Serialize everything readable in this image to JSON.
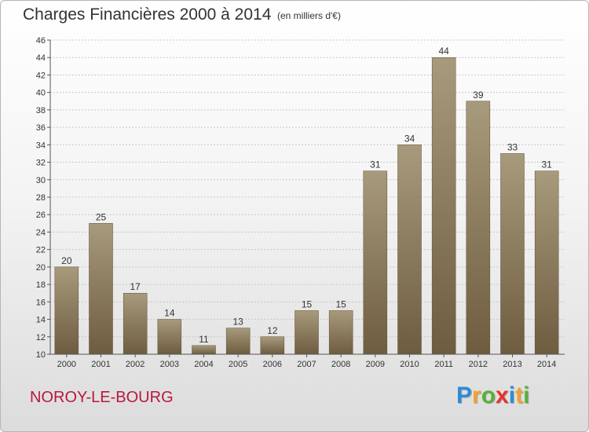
{
  "header": {
    "title": "Charges Financières 2000 à 2014",
    "subtitle": "(en milliers d'€)"
  },
  "footer": {
    "commune": "NOROY-LE-BOURG",
    "logo_letters": [
      {
        "ch": "P",
        "color": "#2e8bd8"
      },
      {
        "ch": "r",
        "color": "#f2a12c"
      },
      {
        "ch": "o",
        "color": "#58b03c"
      },
      {
        "ch": "x",
        "color": "#e8312a"
      },
      {
        "ch": "i",
        "color": "#2e8bd8"
      },
      {
        "ch": "t",
        "color": "#f2a12c"
      },
      {
        "ch": "i",
        "color": "#58b03c"
      }
    ]
  },
  "colors": {
    "bar_top": "#a89a7c",
    "bar_bottom": "#6e5c40",
    "grid": "#c8c8c8",
    "axis": "#555555",
    "text": "#333333"
  },
  "chart_data": {
    "type": "bar",
    "categories": [
      "2000",
      "2001",
      "2002",
      "2003",
      "2004",
      "2005",
      "2006",
      "2007",
      "2008",
      "2009",
      "2010",
      "2011",
      "2012",
      "2013",
      "2014"
    ],
    "values": [
      20,
      25,
      17,
      14,
      11,
      13,
      12,
      15,
      15,
      31,
      34,
      44,
      39,
      33,
      31
    ],
    "ylim": [
      10,
      46
    ],
    "yticks": [
      10,
      12,
      14,
      16,
      18,
      20,
      22,
      24,
      26,
      28,
      30,
      32,
      34,
      36,
      38,
      40,
      42,
      44,
      46
    ],
    "grid": "horizontal",
    "data_labels": true
  }
}
